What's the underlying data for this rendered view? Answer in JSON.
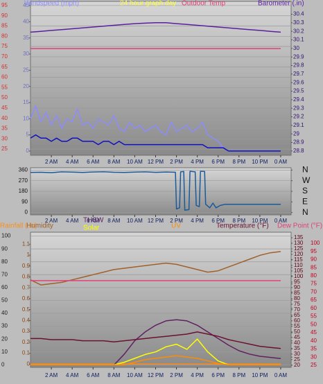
{
  "chart_data": [
    {
      "type": "line",
      "title": "24 hour graph day",
      "x": [
        0,
        1,
        2,
        3,
        4,
        5,
        6,
        7,
        8,
        9,
        10,
        11,
        12,
        13,
        14,
        15,
        16,
        17,
        18,
        19,
        20,
        21,
        22,
        23,
        24
      ],
      "xlim": [
        0,
        25
      ],
      "xticks": [
        {
          "value": 2,
          "label": "2 AM"
        },
        {
          "value": 4,
          "label": "4 AM"
        },
        {
          "value": 6,
          "label": "6 AM"
        },
        {
          "value": 8,
          "label": "8 AM"
        },
        {
          "value": 10,
          "label": "10 AM"
        },
        {
          "value": 12,
          "label": "12 PM"
        },
        {
          "value": 14,
          "label": "2 PM"
        },
        {
          "value": 16,
          "label": "4 PM"
        },
        {
          "value": 18,
          "label": "6 PM"
        },
        {
          "value": 20,
          "label": "8 PM"
        },
        {
          "value": 22,
          "label": "10 PM"
        },
        {
          "value": 24,
          "label": "0 AM"
        }
      ],
      "ylim": [
        22,
        97
      ],
      "yticks": [
        25,
        30,
        35,
        40,
        45,
        50,
        55,
        60,
        65,
        70,
        75,
        80,
        85,
        90,
        95
      ],
      "y2lim": [
        -1.3,
        46.3
      ],
      "y2ticks": [
        0,
        5,
        10,
        15,
        20,
        25,
        30,
        35,
        40,
        45
      ],
      "y3lim": [
        28.75,
        30.55
      ],
      "y3ticks": [
        28.8,
        28.9,
        29,
        29.1,
        29.2,
        29.3,
        29.4,
        29.5,
        29.6,
        29.7,
        29.8,
        29.9,
        30,
        30.1,
        30.2,
        30.3,
        30.4
      ],
      "grid": true,
      "series": [
        {
          "name": "Windspeed (mph)",
          "color": "#8c8cff",
          "axis": "y2",
          "x": [
            0,
            0.5,
            1,
            1.5,
            2,
            2.5,
            3,
            3.5,
            4,
            4.5,
            5,
            5.5,
            6,
            6.5,
            7,
            7.5,
            8,
            8.5,
            9,
            9.5,
            10,
            10.5,
            11,
            11.5,
            12,
            12.5,
            13,
            13.5,
            14,
            14.5,
            15,
            15.5,
            16,
            16.5,
            17,
            17.5,
            18,
            18.5,
            19,
            19.5,
            20,
            20.5,
            21,
            21.5,
            22,
            22.5,
            23,
            23.5,
            24
          ],
          "values": [
            10,
            14,
            9,
            12,
            8,
            11,
            7,
            10,
            9,
            13,
            8,
            9,
            7,
            10,
            9,
            8,
            11,
            7,
            6,
            9,
            7,
            8,
            6,
            7,
            8,
            6,
            5,
            9,
            6,
            7,
            8,
            6,
            7,
            9,
            5,
            4,
            3,
            1,
            0,
            0,
            0,
            0,
            0,
            0,
            0,
            0,
            0,
            0,
            0
          ]
        },
        {
          "color": "#1010c0",
          "axis": "y2",
          "x": [
            0,
            0.5,
            1,
            1.5,
            2,
            2.5,
            3,
            3.5,
            4,
            4.5,
            5,
            5.5,
            6,
            6.5,
            7,
            7.5,
            8,
            8.5,
            9,
            9.5,
            10,
            10.5,
            11,
            11.5,
            12,
            12.5,
            13,
            13.5,
            14,
            14.5,
            15,
            15.5,
            16,
            16.5,
            17,
            17.5,
            18,
            18.5,
            19,
            19.5,
            20,
            20.5,
            21,
            21.5,
            22,
            22.5,
            23,
            23.5,
            24
          ],
          "values": [
            4,
            5,
            4,
            4,
            3,
            4,
            3,
            3,
            4,
            4,
            3,
            3,
            3,
            2,
            3,
            3,
            2,
            3,
            2,
            2,
            2,
            2,
            2,
            2,
            2,
            2,
            2,
            2,
            2,
            2,
            2,
            2,
            2,
            2,
            1,
            1,
            1,
            1,
            0,
            0,
            0,
            0,
            0,
            0,
            0,
            0,
            0,
            0,
            0
          ]
        },
        {
          "name": "Outdoor Temp",
          "color": "#e0407a",
          "axis": "y",
          "values": [
            74,
            74,
            74,
            74,
            74,
            74,
            74,
            74,
            74,
            74,
            74,
            74,
            74,
            74,
            74,
            74,
            74,
            74,
            74,
            74,
            74,
            74,
            74,
            74,
            74
          ]
        },
        {
          "name": "Barometer (.in)",
          "color": "#5a1fa0",
          "axis": "y3",
          "values": [
            30.19,
            30.2,
            30.21,
            30.22,
            30.23,
            30.24,
            30.25,
            30.26,
            30.27,
            30.28,
            30.29,
            30.295,
            30.3,
            30.3,
            30.29,
            30.28,
            30.27,
            30.26,
            30.25,
            30.24,
            30.23,
            30.22,
            30.21,
            30.2,
            30.19
          ]
        }
      ]
    },
    {
      "type": "line",
      "xlim": [
        0,
        25
      ],
      "xticks": [
        {
          "value": 2,
          "label": "2 AM"
        },
        {
          "value": 4,
          "label": "4 AM"
        },
        {
          "value": 6,
          "label": "6 AM"
        },
        {
          "value": 8,
          "label": "8 AM"
        },
        {
          "value": 10,
          "label": "10 AM"
        },
        {
          "value": 12,
          "label": "12 PM"
        },
        {
          "value": 14,
          "label": "2 PM"
        },
        {
          "value": 16,
          "label": "4 PM"
        },
        {
          "value": 18,
          "label": "6 PM"
        },
        {
          "value": 20,
          "label": "8 PM"
        },
        {
          "value": 22,
          "label": "10 PM"
        },
        {
          "value": 24,
          "label": "0 AM"
        }
      ],
      "ylim": [
        -20,
        380
      ],
      "yticks": [
        0,
        90,
        180,
        270,
        360
      ],
      "y2lim": [
        -20,
        380
      ],
      "y2ticks": [
        {
          "value": 360,
          "label": "N"
        },
        {
          "value": 270,
          "label": "W"
        },
        {
          "value": 180,
          "label": "S"
        },
        {
          "value": 90,
          "label": "E"
        },
        {
          "value": 0,
          "label": "N"
        }
      ],
      "grid": true,
      "series": [
        {
          "color": "#1a5a9a",
          "axis": "y",
          "x": [
            0,
            1,
            2,
            3,
            4,
            5,
            6,
            7,
            8,
            9,
            10,
            11,
            12,
            13,
            13.9,
            14.0,
            14.3,
            14.4,
            14.7,
            14.8,
            15.2,
            15.3,
            15.8,
            15.9,
            16.2,
            16.3,
            16.7,
            16.8,
            17.2,
            17.5,
            17.8,
            18.2,
            18.7,
            19,
            20,
            21,
            22,
            23,
            24
          ],
          "values": [
            340,
            342,
            338,
            345,
            343,
            340,
            344,
            346,
            342,
            340,
            343,
            345,
            341,
            344,
            342,
            30,
            40,
            345,
            348,
            20,
            25,
            350,
            345,
            60,
            50,
            350,
            348,
            70,
            40,
            80,
            40,
            60,
            70,
            70,
            70,
            70,
            70,
            70,
            70
          ]
        }
      ]
    },
    {
      "type": "line",
      "x": [
        0,
        1,
        2,
        3,
        4,
        5,
        6,
        7,
        8,
        9,
        10,
        11,
        12,
        13,
        14,
        15,
        16,
        17,
        18,
        19,
        20,
        21,
        22,
        23,
        24
      ],
      "xlim": [
        0,
        25
      ],
      "xticks": [
        {
          "value": 2,
          "label": "2 AM"
        },
        {
          "value": 4,
          "label": "4 AM"
        },
        {
          "value": 6,
          "label": "6 AM"
        },
        {
          "value": 8,
          "label": "8 AM"
        },
        {
          "value": 10,
          "label": "10 AM"
        },
        {
          "value": 12,
          "label": "12 PM"
        },
        {
          "value": 14,
          "label": "2 PM"
        },
        {
          "value": 16,
          "label": "4 PM"
        },
        {
          "value": 18,
          "label": "6 PM"
        },
        {
          "value": 20,
          "label": "8 PM"
        },
        {
          "value": 22,
          "label": "10 PM"
        },
        {
          "value": 24,
          "label": "0 AM"
        }
      ],
      "ylim": [
        -2,
        103
      ],
      "yticks": [
        0,
        10,
        20,
        30,
        40,
        50,
        60,
        70,
        80,
        90,
        100
      ],
      "y2lim": [
        -0.03,
        1.21
      ],
      "y2ticks": [
        0,
        0.1,
        0.2,
        0.3,
        0.4,
        0.5,
        0.6,
        0.7,
        0.8,
        0.9,
        1,
        1.1
      ],
      "y3lim": [
        18,
        140
      ],
      "y3ticks": [
        20,
        25,
        30,
        35,
        40,
        45,
        50,
        55,
        60,
        65,
        70,
        75,
        80,
        85,
        90,
        95,
        100,
        105,
        110,
        115,
        120,
        125,
        130,
        135
      ],
      "y4lim": [
        23.7,
        106.8
      ],
      "y4ticks": [
        25,
        30,
        35,
        40,
        45,
        50,
        55,
        60,
        65,
        70,
        75,
        80,
        85,
        90,
        95,
        100
      ],
      "grid": true,
      "series": [
        {
          "name": "Rainfall (.in)",
          "color": "#ff8c1a",
          "axis": "y2",
          "values": [
            0,
            0,
            0,
            0,
            0,
            0,
            0,
            0,
            0,
            0,
            0,
            0,
            0,
            0,
            0,
            0,
            0,
            0,
            0,
            0,
            0,
            0,
            0,
            0,
            0
          ]
        },
        {
          "name": "Humidity",
          "color": "#a0602a",
          "axis": "y",
          "values": [
            66,
            62,
            63,
            64,
            66,
            68,
            70,
            72,
            74,
            75,
            76,
            77,
            78,
            79,
            78,
            76,
            74,
            72,
            73,
            76,
            79,
            82,
            85,
            87,
            88
          ]
        },
        {
          "name": "THSW",
          "color": "#602060",
          "axis": "y3",
          "values": [
            null,
            null,
            null,
            null,
            null,
            null,
            null,
            null,
            20,
            30,
            42,
            50,
            56,
            60,
            61,
            60,
            56,
            50,
            44,
            38,
            33,
            30,
            28,
            27,
            26
          ]
        },
        {
          "name": "Solar",
          "color": "#ffff00",
          "axis": "y",
          "values": [
            0,
            0,
            0,
            0,
            0,
            0,
            0,
            0,
            0,
            2,
            5,
            8,
            10,
            14,
            16,
            12,
            20,
            10,
            3,
            0,
            0,
            0,
            0,
            0,
            0
          ]
        },
        {
          "name": "UV",
          "color": "#ff8c00",
          "axis": "y",
          "values": [
            0,
            0,
            0,
            0,
            0,
            0,
            0,
            0,
            0,
            0,
            2,
            4,
            5,
            6,
            7,
            6,
            5,
            3,
            1,
            0,
            0,
            0,
            0,
            0,
            0
          ]
        },
        {
          "name": "Temperature (°F)",
          "color": "#6a1030",
          "axis": "y3",
          "values": [
            44,
            44,
            43,
            43,
            43,
            42,
            42,
            42,
            41,
            42,
            43,
            44,
            45,
            46,
            47,
            48,
            50,
            48,
            46,
            43,
            41,
            39,
            37,
            36,
            35
          ]
        },
        {
          "name": "Dew Point (°F)",
          "color": "#e0407a",
          "axis": "y4",
          "values": [
            77,
            77,
            77,
            77,
            77,
            77,
            77,
            77,
            77,
            77,
            77,
            77,
            77,
            77,
            77,
            77,
            77,
            77,
            77,
            77,
            77,
            77,
            77,
            77,
            77
          ]
        }
      ]
    }
  ]
}
